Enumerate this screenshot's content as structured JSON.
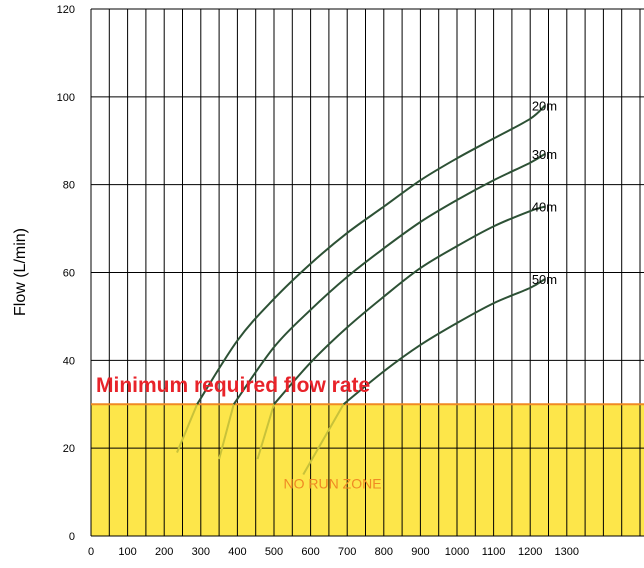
{
  "chart_data": {
    "type": "line",
    "title": "",
    "xlabel": "",
    "ylabel": "Flow (L/min)",
    "xlim": [
      0,
      1300
    ],
    "ylim": [
      0,
      120
    ],
    "x_ticks": [
      "0",
      "100",
      "200",
      "300",
      "400",
      "500",
      "600",
      "700",
      "800",
      "900",
      "1000",
      "1100",
      "1200",
      "1300"
    ],
    "y_ticks": [
      "0",
      "20",
      "40",
      "60",
      "80",
      "100",
      "120"
    ],
    "grid": true,
    "series": [
      {
        "name": "20m",
        "color": "#2d5135",
        "x": [
          290,
          400,
          500,
          600,
          700,
          800,
          900,
          1000,
          1100,
          1200,
          1240
        ],
        "y": [
          30,
          44.5,
          54,
          62,
          69,
          75,
          81,
          86,
          90.5,
          95,
          98
        ]
      },
      {
        "name": "30m",
        "color": "#2d5135",
        "x": [
          390,
          500,
          600,
          700,
          800,
          900,
          1000,
          1100,
          1200,
          1240
        ],
        "y": [
          30,
          43,
          51.5,
          59,
          65.5,
          71.5,
          76.5,
          81,
          85,
          87
        ]
      },
      {
        "name": "40m",
        "color": "#2d5135",
        "x": [
          500,
          600,
          700,
          800,
          900,
          1000,
          1100,
          1200,
          1240
        ],
        "y": [
          30,
          39.5,
          47.5,
          54.5,
          61,
          66,
          70.5,
          74,
          75
        ]
      },
      {
        "name": "50m",
        "color": "#2d5135",
        "x": [
          690,
          800,
          900,
          1000,
          1100,
          1200,
          1240
        ],
        "y": [
          30,
          37.5,
          43.5,
          48.5,
          53,
          56.5,
          58.5
        ]
      }
    ],
    "below_threshold_tails": [
      {
        "series": "20m",
        "x": [
          235,
          290
        ],
        "y": [
          19,
          30
        ]
      },
      {
        "series": "30m",
        "x": [
          350,
          390
        ],
        "y": [
          17.5,
          30
        ]
      },
      {
        "series": "40m",
        "x": [
          455,
          500
        ],
        "y": [
          17.5,
          30
        ]
      },
      {
        "series": "50m",
        "x": [
          580,
          690
        ],
        "y": [
          14,
          30
        ]
      }
    ],
    "threshold": {
      "value": 30,
      "label": "Minimum required flow rate",
      "color": "#e8232a",
      "line_color": "#f08a24"
    },
    "zone": {
      "label": "NO RUN ZONE",
      "fill": "#fde64a",
      "label_color": "#f08a24",
      "ymin": 0,
      "ymax": 30
    },
    "tail_color": "#c8c23a"
  }
}
